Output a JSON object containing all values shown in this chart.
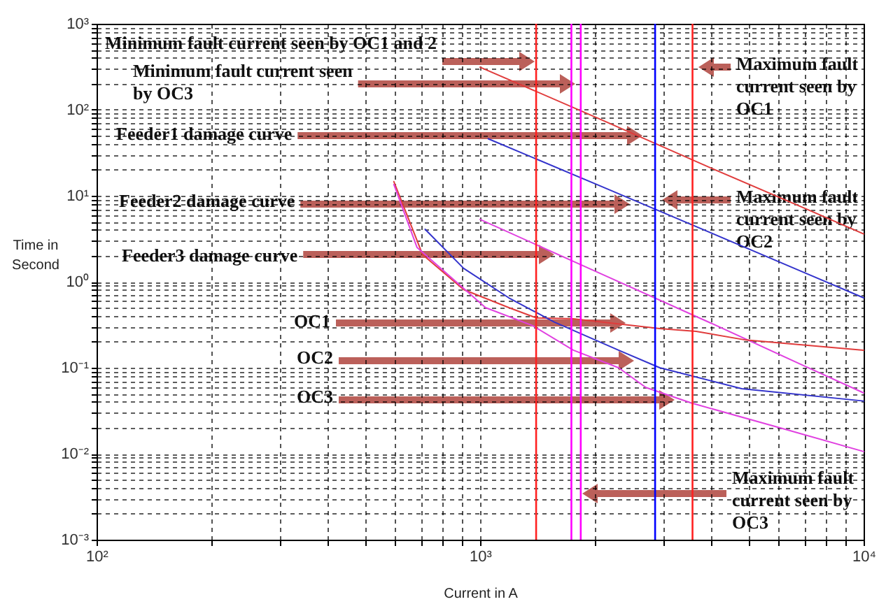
{
  "chart_data": {
    "type": "line",
    "xlabel": "Current in A",
    "ylabel": "Time in Second",
    "log": "xy",
    "grid": true,
    "xlim": [
      100,
      10000
    ],
    "ylim": [
      0.001,
      1000
    ],
    "xticks": [
      {
        "value": 100,
        "label": "10²"
      },
      {
        "value": 200,
        "label": null
      },
      {
        "value": 300,
        "label": null
      },
      {
        "value": 400,
        "label": null
      },
      {
        "value": 500,
        "label": null
      },
      {
        "value": 600,
        "label": null
      },
      {
        "value": 700,
        "label": null
      },
      {
        "value": 800,
        "label": null
      },
      {
        "value": 900,
        "label": null
      },
      {
        "value": 1000,
        "label": "10³"
      },
      {
        "value": 2000,
        "label": null
      },
      {
        "value": 3000,
        "label": null
      },
      {
        "value": 4000,
        "label": null
      },
      {
        "value": 5000,
        "label": null
      },
      {
        "value": 6000,
        "label": null
      },
      {
        "value": 7000,
        "label": null
      },
      {
        "value": 8000,
        "label": null
      },
      {
        "value": 9000,
        "label": null
      },
      {
        "value": 10000,
        "label": "10⁴"
      }
    ],
    "yticks": [
      {
        "value": 0.001,
        "label": "10⁻³"
      },
      {
        "value": 0.002,
        "label": null
      },
      {
        "value": 0.003,
        "label": null
      },
      {
        "value": 0.004,
        "label": null
      },
      {
        "value": 0.005,
        "label": null
      },
      {
        "value": 0.006,
        "label": null
      },
      {
        "value": 0.007,
        "label": null
      },
      {
        "value": 0.008,
        "label": null
      },
      {
        "value": 0.009,
        "label": null
      },
      {
        "value": 0.01,
        "label": "10⁻²"
      },
      {
        "value": 0.02,
        "label": null
      },
      {
        "value": 0.03,
        "label": null
      },
      {
        "value": 0.04,
        "label": null
      },
      {
        "value": 0.05,
        "label": null
      },
      {
        "value": 0.06,
        "label": null
      },
      {
        "value": 0.07,
        "label": null
      },
      {
        "value": 0.08,
        "label": null
      },
      {
        "value": 0.09,
        "label": null
      },
      {
        "value": 0.1,
        "label": "10⁻¹"
      },
      {
        "value": 0.2,
        "label": null
      },
      {
        "value": 0.3,
        "label": null
      },
      {
        "value": 0.4,
        "label": null
      },
      {
        "value": 0.5,
        "label": null
      },
      {
        "value": 0.6,
        "label": null
      },
      {
        "value": 0.7,
        "label": null
      },
      {
        "value": 0.8,
        "label": null
      },
      {
        "value": 0.9,
        "label": null
      },
      {
        "value": 1,
        "label": "10⁰"
      },
      {
        "value": 2,
        "label": null
      },
      {
        "value": 3,
        "label": null
      },
      {
        "value": 4,
        "label": null
      },
      {
        "value": 5,
        "label": null
      },
      {
        "value": 6,
        "label": null
      },
      {
        "value": 7,
        "label": null
      },
      {
        "value": 8,
        "label": null
      },
      {
        "value": 9,
        "label": null
      },
      {
        "value": 10,
        "label": "10¹"
      },
      {
        "value": 20,
        "label": null
      },
      {
        "value": 30,
        "label": null
      },
      {
        "value": 40,
        "label": null
      },
      {
        "value": 50,
        "label": null
      },
      {
        "value": 60,
        "label": null
      },
      {
        "value": 70,
        "label": null
      },
      {
        "value": 80,
        "label": null
      },
      {
        "value": 90,
        "label": null
      },
      {
        "value": 100,
        "label": "10²"
      },
      {
        "value": 200,
        "label": null
      },
      {
        "value": 300,
        "label": null
      },
      {
        "value": 400,
        "label": null
      },
      {
        "value": 500,
        "label": null
      },
      {
        "value": 600,
        "label": null
      },
      {
        "value": 700,
        "label": null
      },
      {
        "value": 800,
        "label": null
      },
      {
        "value": 900,
        "label": null
      },
      {
        "value": 1000,
        "label": "10³"
      }
    ],
    "series": [
      {
        "color": "#e03c3c",
        "x": [
          1000,
          2000,
          4000,
          7000,
          10000
        ],
        "values": [
          313,
          82,
          21,
          7.2,
          3.6
        ]
      },
      {
        "color": "#3333cc",
        "x": [
          1050,
          2000,
          4000,
          7000,
          10000
        ],
        "values": [
          46,
          13.7,
          3.7,
          1.28,
          0.65
        ]
      },
      {
        "color": "#e040e0",
        "x": [
          1000,
          2000,
          4000,
          7000,
          10000
        ],
        "values": [
          5.3,
          1.32,
          0.33,
          0.105,
          0.051
        ]
      },
      {
        "color": "#e03c3c",
        "x": [
          596,
          708,
          906,
          1188,
          1400,
          1750,
          2940,
          3660,
          4930,
          10000
        ],
        "values": [
          14.6,
          2.07,
          0.81,
          0.5,
          0.38,
          0.37,
          0.285,
          0.265,
          0.21,
          0.16
        ]
      },
      {
        "color": "#3333cc",
        "x": [
          719,
          906,
          1188,
          1560,
          2296,
          2940,
          4810,
          10000
        ],
        "values": [
          4.07,
          1.43,
          0.65,
          0.34,
          0.16,
          0.1,
          0.057,
          0.041
        ]
      },
      {
        "color": "#e040e0",
        "x": [
          596,
          685,
          1033,
          1368,
          1750,
          2296,
          2705,
          3545,
          6310,
          10000
        ],
        "values": [
          13.5,
          2.5,
          0.5,
          0.31,
          0.16,
          0.1,
          0.059,
          0.039,
          0.019,
          0.0106
        ]
      }
    ],
    "ref_lines": [
      {
        "axis": "x",
        "value": 1400,
        "color": "#ff2020"
      },
      {
        "axis": "x",
        "value": 1730,
        "color": "#ff00ff"
      },
      {
        "axis": "x",
        "value": 1830,
        "color": "#ff00ff"
      },
      {
        "axis": "x",
        "value": 2860,
        "color": "#0000ff"
      },
      {
        "axis": "x",
        "value": 3580,
        "color": "#ff2020"
      }
    ],
    "annotations": [
      "Minimum fault current seen by OC1 and 2",
      "Minimum fault current seen by OC3",
      "Feeder1 damage curve",
      "Feeder2 damage curve",
      "Feeder3 damage curve",
      "OC1",
      "OC2",
      "OC3",
      "Maximum fault current seen by OC1",
      "Maximum fault current seen by OC2",
      "Maximum fault current seen by OC3"
    ]
  }
}
